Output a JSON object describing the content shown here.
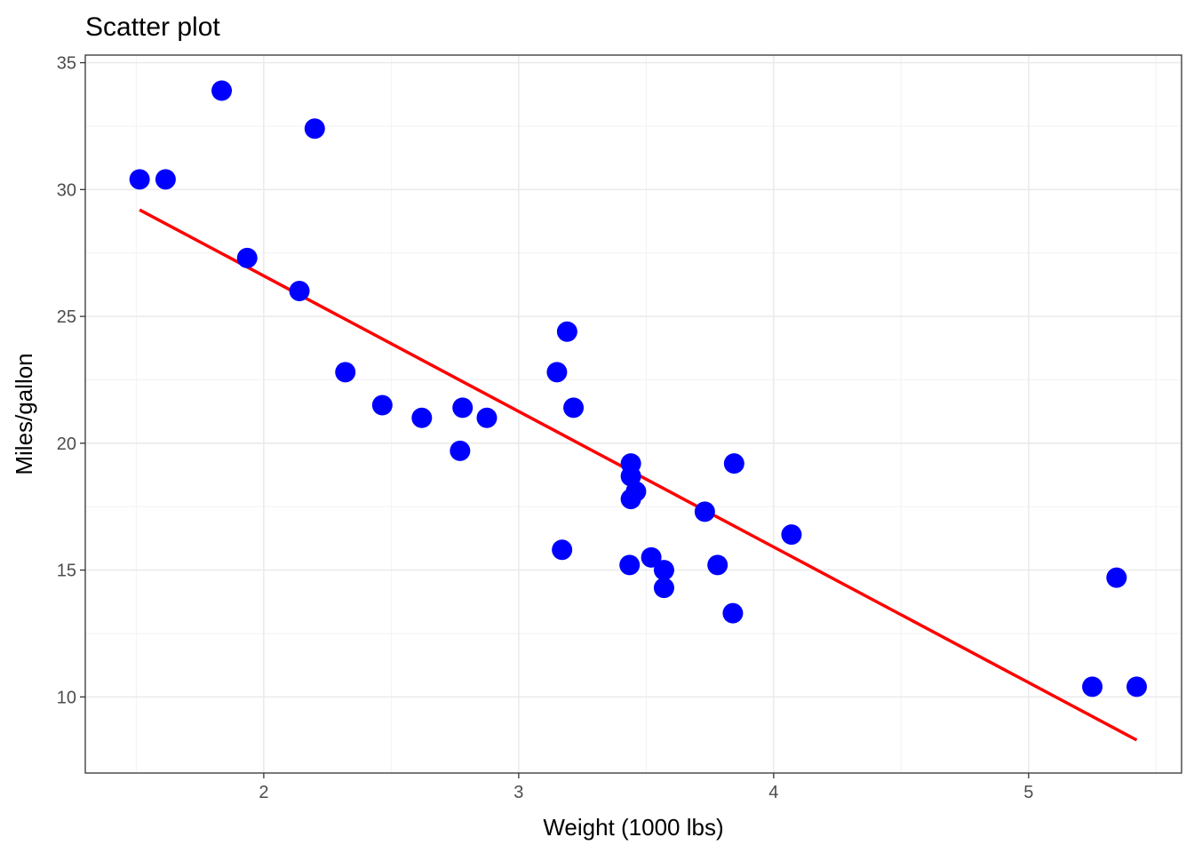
{
  "chart_data": {
    "type": "scatter",
    "title": "Scatter plot",
    "xlabel": "Weight (1000 lbs)",
    "ylabel": "Miles/gallon",
    "xlim": [
      1.3,
      5.6
    ],
    "ylim": [
      7.0,
      35.3
    ],
    "x_ticks": [
      2,
      3,
      4,
      5
    ],
    "x_minor_ticks": [
      1.5,
      2.5,
      3.5,
      4.5,
      5.5
    ],
    "y_ticks": [
      10,
      15,
      20,
      25,
      30,
      35
    ],
    "y_minor_ticks": [
      12.5,
      17.5,
      22.5,
      27.5,
      32.5
    ],
    "grid": true,
    "point_color": "#0000ff",
    "line_color": "#ff0000",
    "series": [
      {
        "x": [
          2.62,
          2.875,
          2.32,
          3.215,
          3.44,
          3.46,
          3.57,
          3.19,
          3.15,
          3.44,
          3.44,
          4.07,
          3.73,
          3.78,
          5.25,
          5.424,
          5.345,
          2.2,
          1.615,
          1.835,
          2.465,
          3.52,
          3.435,
          3.84,
          3.845,
          1.935,
          2.14,
          1.513,
          3.17,
          2.77,
          3.57,
          2.78
        ],
        "y": [
          21.0,
          21.0,
          22.8,
          21.4,
          18.7,
          18.1,
          14.3,
          24.4,
          22.8,
          19.2,
          17.8,
          16.4,
          17.3,
          15.2,
          10.4,
          10.4,
          14.7,
          32.4,
          30.4,
          33.9,
          21.5,
          15.5,
          15.2,
          13.3,
          19.2,
          27.3,
          26.0,
          30.4,
          15.8,
          19.7,
          15.0,
          21.4
        ]
      }
    ],
    "fit_line": {
      "x": [
        1.513,
        5.424
      ],
      "y": [
        29.2,
        8.3
      ]
    }
  }
}
